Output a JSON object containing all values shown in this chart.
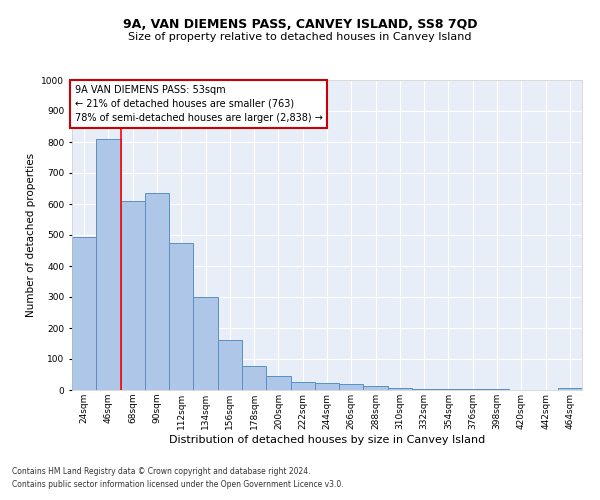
{
  "title": "9A, VAN DIEMENS PASS, CANVEY ISLAND, SS8 7QD",
  "subtitle": "Size of property relative to detached houses in Canvey Island",
  "xlabel": "Distribution of detached houses by size in Canvey Island",
  "ylabel": "Number of detached properties",
  "footer1": "Contains HM Land Registry data © Crown copyright and database right 2024.",
  "footer2": "Contains public sector information licensed under the Open Government Licence v3.0.",
  "categories": [
    "24sqm",
    "46sqm",
    "68sqm",
    "90sqm",
    "112sqm",
    "134sqm",
    "156sqm",
    "178sqm",
    "200sqm",
    "222sqm",
    "244sqm",
    "266sqm",
    "288sqm",
    "310sqm",
    "332sqm",
    "354sqm",
    "376sqm",
    "398sqm",
    "420sqm",
    "442sqm",
    "464sqm"
  ],
  "values": [
    495,
    810,
    610,
    635,
    475,
    300,
    160,
    78,
    45,
    25,
    22,
    18,
    12,
    5,
    4,
    3,
    3,
    2,
    1,
    1,
    8
  ],
  "bar_color": "#aec6e8",
  "bar_edge_color": "#5a8fc3",
  "background_color": "#e8eef7",
  "annotation_line1": "9A VAN DIEMENS PASS: 53sqm",
  "annotation_line2": "← 21% of detached houses are smaller (763)",
  "annotation_line3": "78% of semi-detached houses are larger (2,838) →",
  "annotation_box_color": "#cc0000",
  "red_line_x": 1.5,
  "ylim": [
    0,
    1000
  ],
  "yticks": [
    0,
    100,
    200,
    300,
    400,
    500,
    600,
    700,
    800,
    900,
    1000
  ],
  "title_fontsize": 9,
  "subtitle_fontsize": 8,
  "xlabel_fontsize": 8,
  "ylabel_fontsize": 7.5,
  "tick_fontsize": 6.5,
  "annotation_fontsize": 7,
  "footer_fontsize": 5.5
}
